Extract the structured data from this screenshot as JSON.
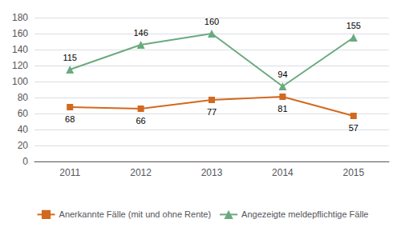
{
  "chart_data": {
    "type": "line",
    "categories": [
      "2011",
      "2012",
      "2013",
      "2014",
      "2015"
    ],
    "series": [
      {
        "name": "Anerkannte Fälle (mit und ohne Rente)",
        "color": "#d2691e",
        "marker": "square",
        "values": [
          68,
          66,
          77,
          81,
          57
        ]
      },
      {
        "name": "Angezeigte meldepflichtige Fälle",
        "color": "#6aaa7e",
        "marker": "triangle",
        "values": [
          115,
          146,
          160,
          94,
          155
        ]
      }
    ],
    "ylim": [
      0,
      180
    ],
    "yticks": [
      0,
      20,
      40,
      60,
      80,
      100,
      120,
      140,
      160,
      180
    ],
    "grid": true,
    "legend": "bottom",
    "data_labels": true
  }
}
